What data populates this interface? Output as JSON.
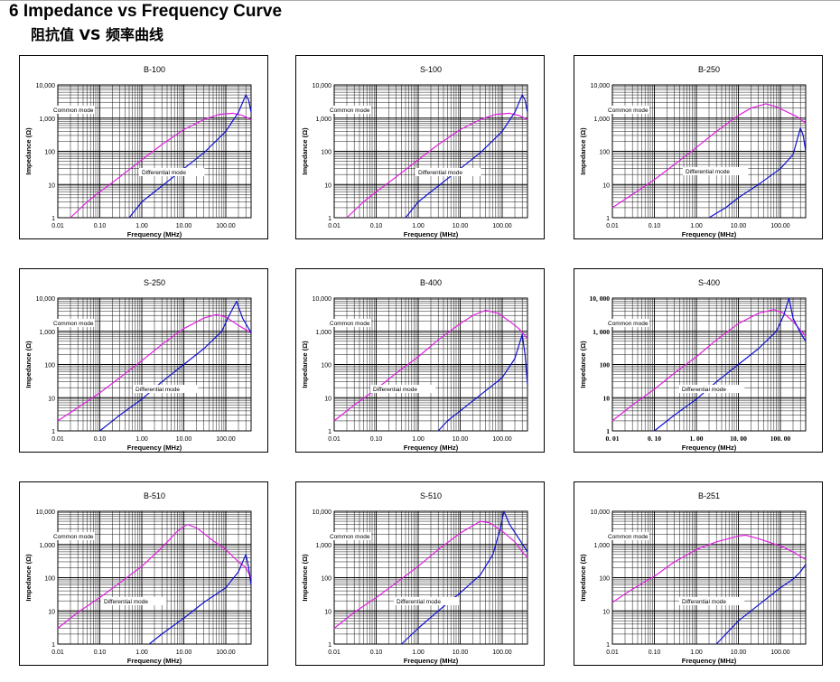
{
  "page": {
    "title": "6 Impedance vs Frequency Curve",
    "subtitle": "阻抗值 VS 频率曲线"
  },
  "colors": {
    "common": "#e020e0",
    "differential": "#1010d0",
    "grid": "#000000"
  },
  "axis_defaults": {
    "xlabel": "Frequency (MHz)",
    "ylabel": "Impedance (Ω)",
    "xlim": [
      0.01,
      400
    ],
    "ylim": [
      1,
      10000
    ],
    "x_scale": "log",
    "y_scale": "log",
    "xticks": [
      "0.01",
      "0.10",
      "1.00",
      "10.00",
      "100.00"
    ],
    "yticks": [
      "1",
      "10",
      "100",
      "1,000",
      "10,000"
    ],
    "series_labels": [
      "Common mode",
      "Differential mode"
    ]
  },
  "chart_data": [
    {
      "type": "line",
      "title": "B-100",
      "xlabel": "Frequency (MHz)",
      "ylabel": "Impedance (Ω)",
      "xlim": [
        0.01,
        400
      ],
      "ylim": [
        1,
        10000
      ],
      "xticks": [
        "0.01",
        "0.10",
        "1.00",
        "10.00",
        "100.00"
      ],
      "yticks": [
        "1",
        "10",
        "100",
        "1,000",
        "10,000"
      ],
      "grid": true,
      "series": [
        {
          "name": "Common mode",
          "color": "#e020e0",
          "x": [
            0.02,
            0.05,
            0.1,
            0.3,
            1,
            3,
            10,
            30,
            70,
            150,
            250,
            400
          ],
          "y": [
            1,
            3,
            6,
            17,
            55,
            160,
            450,
            900,
            1300,
            1400,
            1200,
            900
          ]
        },
        {
          "name": "Differential mode",
          "color": "#1010d0",
          "x": [
            0.5,
            1,
            2,
            5,
            10,
            30,
            100,
            200,
            300,
            350,
            400
          ],
          "y": [
            1,
            3,
            6,
            15,
            30,
            90,
            400,
            1500,
            5000,
            3500,
            1500
          ]
        }
      ]
    },
    {
      "type": "line",
      "title": "S-100",
      "xlabel": "Frequency (MHz)",
      "ylabel": "Impedance (Ω)",
      "xlim": [
        0.01,
        400
      ],
      "ylim": [
        1,
        10000
      ],
      "xticks": [
        "0.01",
        "0.10",
        "1.00",
        "10.00",
        "100.00"
      ],
      "yticks": [
        "1",
        "10",
        "100",
        "1,000",
        "10,000"
      ],
      "grid": true,
      "series": [
        {
          "name": "Common mode",
          "color": "#e020e0",
          "x": [
            0.02,
            0.05,
            0.1,
            0.3,
            1,
            3,
            10,
            30,
            70,
            150,
            250,
            400
          ],
          "y": [
            1,
            3,
            6,
            17,
            55,
            160,
            450,
            900,
            1300,
            1400,
            1200,
            900
          ]
        },
        {
          "name": "Differential mode",
          "color": "#1010d0",
          "x": [
            0.5,
            1,
            2,
            5,
            10,
            30,
            100,
            200,
            300,
            350,
            400
          ],
          "y": [
            1,
            3,
            6,
            15,
            30,
            90,
            400,
            1500,
            5000,
            3500,
            1500
          ]
        }
      ]
    },
    {
      "type": "line",
      "title": "B-250",
      "xlabel": "Frequency (MHz)",
      "ylabel": "Impedance (Ω)",
      "xlim": [
        0.01,
        400
      ],
      "ylim": [
        1,
        10000
      ],
      "xticks": [
        "0.01",
        "0.10",
        "1.00",
        "10.00",
        "100.00"
      ],
      "yticks": [
        "1",
        "10",
        "100",
        "1,000",
        "10,000"
      ],
      "grid": true,
      "series": [
        {
          "name": "Common mode",
          "color": "#e020e0",
          "x": [
            0.01,
            0.03,
            0.1,
            0.3,
            1,
            3,
            10,
            20,
            45,
            80,
            150,
            250,
            400
          ],
          "y": [
            2,
            5,
            14,
            40,
            130,
            400,
            1200,
            2000,
            2700,
            2200,
            1500,
            1100,
            700
          ]
        },
        {
          "name": "Differential mode",
          "color": "#1010d0",
          "x": [
            2,
            5,
            10,
            30,
            100,
            200,
            300,
            350,
            400
          ],
          "y": [
            1,
            2,
            4,
            10,
            30,
            80,
            500,
            300,
            100
          ]
        }
      ]
    },
    {
      "type": "line",
      "title": "S-250",
      "xlabel": "Frequency (MHz)",
      "ylabel": "Impedance (Ω)",
      "xlim": [
        0.01,
        400
      ],
      "ylim": [
        1,
        10000
      ],
      "xticks": [
        "0.01",
        "0.10",
        "1.00",
        "10.00",
        "100.00"
      ],
      "yticks": [
        "1",
        "10",
        "100",
        "1,000",
        "10,000"
      ],
      "grid": true,
      "series": [
        {
          "name": "Common mode",
          "color": "#e020e0",
          "x": [
            0.01,
            0.03,
            0.1,
            0.3,
            1,
            3,
            10,
            30,
            60,
            100,
            200,
            400
          ],
          "y": [
            2,
            5,
            14,
            40,
            130,
            400,
            1200,
            2500,
            3200,
            2700,
            1500,
            900
          ]
        },
        {
          "name": "Differential mode",
          "color": "#1010d0",
          "x": [
            0.1,
            0.3,
            1,
            3,
            10,
            30,
            80,
            120,
            180,
            250,
            400
          ],
          "y": [
            1,
            3,
            9,
            30,
            100,
            300,
            1000,
            3000,
            8000,
            2500,
            900
          ]
        }
      ]
    },
    {
      "type": "line",
      "title": "B-400",
      "xlabel": "Frequency (MHz)",
      "ylabel": "Impedance (Ω)",
      "xlim": [
        0.01,
        400
      ],
      "ylim": [
        1,
        10000
      ],
      "xticks": [
        "0.01",
        "0.10",
        "1.00",
        "10.00",
        "100.00"
      ],
      "yticks": [
        "1",
        "10",
        "100",
        "1,000",
        "10,000"
      ],
      "grid": true,
      "series": [
        {
          "name": "Common mode",
          "color": "#e020e0",
          "x": [
            0.01,
            0.03,
            0.1,
            0.3,
            1,
            3,
            10,
            20,
            40,
            80,
            150,
            250,
            400
          ],
          "y": [
            2,
            6,
            18,
            55,
            170,
            550,
            1700,
            3000,
            4300,
            3500,
            2000,
            1200,
            600
          ]
        },
        {
          "name": "Differential mode",
          "color": "#1010d0",
          "x": [
            3,
            5,
            10,
            30,
            100,
            200,
            300,
            350,
            400
          ],
          "y": [
            1,
            2,
            4,
            12,
            40,
            150,
            800,
            200,
            25
          ]
        }
      ]
    },
    {
      "type": "line",
      "title": "S-400",
      "xlabel": "Frequency (MHz)",
      "ylabel": "Impedance (Ω)",
      "xlim": [
        0.01,
        400
      ],
      "ylim": [
        1,
        10000
      ],
      "xticks": [
        "0. 01",
        "0. 10",
        "1. 00",
        "10. 00",
        "100. 00"
      ],
      "yticks": [
        "1",
        "10",
        "100",
        "1, 000",
        "10, 000"
      ],
      "grid": true,
      "series": [
        {
          "name": "Common mode",
          "color": "#e020e0",
          "x": [
            0.01,
            0.03,
            0.1,
            0.3,
            1,
            3,
            10,
            30,
            70,
            120,
            200,
            400
          ],
          "y": [
            2,
            6,
            18,
            55,
            170,
            550,
            1700,
            3500,
            4500,
            3500,
            2000,
            700
          ]
        },
        {
          "name": "Differential mode",
          "color": "#1010d0",
          "x": [
            0.1,
            0.3,
            1,
            3,
            10,
            30,
            80,
            120,
            160,
            200,
            300,
            400
          ],
          "y": [
            1,
            3,
            9,
            30,
            100,
            300,
            1000,
            3000,
            10000,
            2500,
            900,
            500
          ]
        }
      ]
    },
    {
      "type": "line",
      "title": "B-510",
      "xlabel": "Frequency (MHz)",
      "ylabel": "Impedance (Ω)",
      "xlim": [
        0.01,
        400
      ],
      "ylim": [
        1,
        10000
      ],
      "xticks": [
        "0.01",
        "0.10",
        "1.00",
        "10.00",
        "100.00"
      ],
      "yticks": [
        "1",
        "10",
        "100",
        "1,000",
        "10,000"
      ],
      "grid": true,
      "series": [
        {
          "name": "Common mode",
          "color": "#e020e0",
          "x": [
            0.01,
            0.03,
            0.1,
            0.3,
            1,
            3,
            7,
            12,
            20,
            50,
            100,
            200,
            300,
            400
          ],
          "y": [
            3,
            9,
            25,
            70,
            220,
            800,
            2500,
            4000,
            3200,
            1300,
            700,
            300,
            200,
            100
          ]
        },
        {
          "name": "Differential mode",
          "color": "#1010d0",
          "x": [
            1.5,
            3,
            10,
            30,
            100,
            200,
            300,
            350,
            400
          ],
          "y": [
            1,
            2,
            6,
            18,
            50,
            150,
            500,
            200,
            60
          ]
        }
      ]
    },
    {
      "type": "line",
      "title": "S-510",
      "xlabel": "Frequency (MHz)",
      "ylabel": "Impedance (Ω)",
      "xlim": [
        0.01,
        400
      ],
      "ylim": [
        1,
        10000
      ],
      "xticks": [
        "0.01",
        "0.10",
        "1.00",
        "10.00",
        "100.00"
      ],
      "yticks": [
        "1",
        "10",
        "100",
        "1,000",
        "10,000"
      ],
      "grid": true,
      "series": [
        {
          "name": "Common mode",
          "color": "#e020e0",
          "x": [
            0.01,
            0.03,
            0.1,
            0.3,
            1,
            3,
            10,
            30,
            50,
            100,
            200,
            300,
            400
          ],
          "y": [
            3,
            9,
            25,
            70,
            220,
            700,
            2200,
            5000,
            4500,
            2500,
            1200,
            600,
            400
          ]
        },
        {
          "name": "Differential mode",
          "color": "#1010d0",
          "x": [
            0.4,
            1,
            3,
            10,
            30,
            60,
            90,
            110,
            150,
            250,
            400
          ],
          "y": [
            1,
            3,
            10,
            35,
            120,
            500,
            3000,
            10000,
            4000,
            1500,
            600
          ]
        }
      ]
    },
    {
      "type": "line",
      "title": "B-251",
      "xlabel": "Frequency (MHz)",
      "ylabel": "Impedance (Ω)",
      "xlim": [
        0.01,
        400
      ],
      "ylim": [
        1,
        10000
      ],
      "xticks": [
        "0.01",
        "0.10",
        "1.00",
        "10.00",
        "100.00"
      ],
      "yticks": [
        "1",
        "10",
        "100",
        "1,000",
        "10,000"
      ],
      "grid": true,
      "series": [
        {
          "name": "Common mode",
          "color": "#e020e0",
          "x": [
            0.01,
            0.03,
            0.1,
            0.3,
            1,
            3,
            10,
            15,
            30,
            100,
            200,
            400
          ],
          "y": [
            18,
            45,
            110,
            300,
            700,
            1200,
            1800,
            1900,
            1500,
            900,
            600,
            350
          ]
        },
        {
          "name": "Differential mode",
          "color": "#1010d0",
          "x": [
            3,
            10,
            30,
            100,
            200,
            300,
            400
          ],
          "y": [
            1,
            5,
            15,
            50,
            90,
            150,
            250
          ]
        }
      ]
    }
  ]
}
